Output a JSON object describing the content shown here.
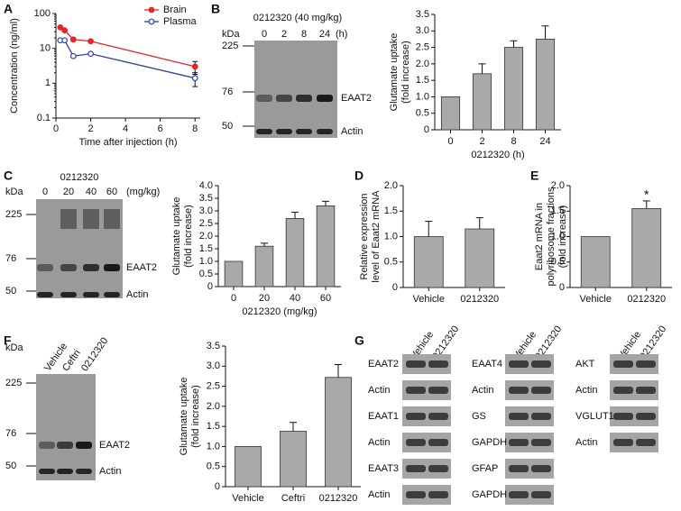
{
  "panel_labels": [
    "A",
    "B",
    "C",
    "D",
    "E",
    "F",
    "G"
  ],
  "chart_data": [
    {
      "type": "line",
      "xlabel": "Time after injection (h)",
      "ylabel": [
        "Concentration (ng/ml)"
      ],
      "xlim": [
        0,
        8.3
      ],
      "xticks": [
        0,
        2,
        4,
        6,
        8
      ],
      "ylim": [
        0.1,
        100
      ],
      "yticks": [
        0.1,
        1,
        10,
        100
      ],
      "log_y": true,
      "legend": "upper right",
      "series": [
        {
          "name": "Brain",
          "color": "#e3262b",
          "filled": true,
          "x": [
            0.25,
            0.5,
            1,
            2,
            8
          ],
          "values": [
            40,
            33,
            18,
            16,
            3
          ],
          "errors": [
            null,
            null,
            null,
            null,
            1.2
          ]
        },
        {
          "name": "Plasma",
          "color": "#2f42a6",
          "filled": false,
          "x": [
            0.25,
            0.5,
            1,
            2,
            8
          ],
          "values": [
            17,
            17,
            6,
            7,
            1.4
          ],
          "errors": [
            null,
            null,
            null,
            null,
            0.6
          ]
        }
      ]
    },
    {
      "type": "bar",
      "xlabel": "0212320 (h)",
      "ylabel": [
        "Glutamate uptake",
        "(fold increase)"
      ],
      "categories": [
        "0",
        "2",
        "8",
        "24"
      ],
      "values": [
        1,
        1.7,
        2.5,
        2.75
      ],
      "errors": [
        null,
        0.3,
        0.2,
        0.4
      ],
      "color": "#a9a9a9",
      "ylim": [
        0,
        3.5
      ],
      "yticks": [
        0,
        0.5,
        {
          "value": 1,
          "label": "1.0"
        },
        1.5,
        {
          "value": 2,
          "label": "2.0"
        },
        2.5,
        {
          "value": 3,
          "label": "3.0"
        },
        3.5
      ]
    },
    {
      "type": "bar",
      "xlabel": "0212320 (mg/kg)",
      "ylabel": [
        "Glutamate uptake",
        "(fold increase)"
      ],
      "categories": [
        "0",
        "20",
        "40",
        "60"
      ],
      "values": [
        1,
        1.6,
        2.7,
        3.2
      ],
      "errors": [
        null,
        0.12,
        0.25,
        0.18
      ],
      "color": "#a9a9a9",
      "ylim": [
        0,
        4
      ],
      "yticks": [
        0,
        0.5,
        {
          "value": 1,
          "label": "1.0"
        },
        1.5,
        {
          "value": 2,
          "label": "2.0"
        },
        2.5,
        {
          "value": 3,
          "label": "3.0"
        },
        3.5,
        {
          "value": 4,
          "label": "4.0"
        }
      ]
    },
    {
      "type": "bar",
      "ylabel": [
        "Relative expression",
        "level of Eaat2 mRNA"
      ],
      "categories": [
        "Vehicle",
        "0212320"
      ],
      "values": [
        1,
        1.15
      ],
      "errors": [
        0.3,
        0.22
      ],
      "color": "#a9a9a9",
      "ylim": [
        0,
        2
      ],
      "yticks": [
        0,
        0.5,
        {
          "value": 1,
          "label": "1.0"
        },
        1.5,
        {
          "value": 2,
          "label": "2.0"
        }
      ]
    },
    {
      "type": "bar",
      "ylabel": [
        "Eaat2 mRNA in",
        "polyribosome fractions",
        "(fold increase)"
      ],
      "categories": [
        "Vehicle",
        "0212320"
      ],
      "values": [
        1,
        1.55
      ],
      "errors": [
        null,
        0.15
      ],
      "significance": [
        null,
        "*"
      ],
      "color": "#a9a9a9",
      "ylim": [
        0,
        2
      ],
      "yticks": [
        0,
        0.5,
        {
          "value": 1,
          "label": "1.0"
        },
        1.5,
        {
          "value": 2,
          "label": "2.0"
        }
      ]
    },
    {
      "type": "bar",
      "ylabel": [
        "Glutamate uptake",
        "(fold increase)"
      ],
      "categories": [
        "Vehicle",
        "Ceftri",
        "0212320"
      ],
      "values": [
        1,
        1.38,
        2.72
      ],
      "errors": [
        null,
        0.22,
        0.32
      ],
      "color": "#a9a9a9",
      "ylim": [
        0,
        3.5
      ],
      "yticks": [
        0,
        0.5,
        {
          "value": 1,
          "label": "1.0"
        },
        1.5,
        {
          "value": 2,
          "label": "2.0"
        },
        2.5,
        {
          "value": 3,
          "label": "3.0"
        },
        3.5
      ]
    }
  ],
  "blots": {
    "B": {
      "title": "0212320 (40 mg/kg)",
      "unit": "kDa",
      "lanes": [
        "0",
        "2",
        "8",
        "24"
      ],
      "lane_unit": "(h)",
      "markers": [
        225,
        76,
        50
      ],
      "bands": [
        "EAAT2",
        "Actin"
      ]
    },
    "C": {
      "title": "0212320",
      "unit": "kDa",
      "lanes": [
        "0",
        "20",
        "40",
        "60"
      ],
      "lane_unit": "(mg/kg)",
      "markers": [
        225,
        76,
        50
      ],
      "bands": [
        "EAAT2",
        "Actin"
      ]
    },
    "F": {
      "unit": "kDa",
      "lanes": [
        "Vehicle",
        "Ceftri",
        "0212320"
      ],
      "markers": [
        225,
        76,
        50
      ],
      "bands": [
        "EAAT2",
        "Actin"
      ]
    },
    "G": {
      "columns": [
        {
          "lanes": [
            "Vehicle",
            "0212320"
          ],
          "bands": [
            "EAAT2",
            "Actin",
            "EAAT1",
            "Actin",
            "EAAT3",
            "Actin"
          ]
        },
        {
          "lanes": [
            "Vehicle",
            "0212320"
          ],
          "bands": [
            "EAAT4",
            "Actin",
            "GS",
            "GAPDH",
            "GFAP",
            "GAPDH"
          ]
        },
        {
          "lanes": [
            "Vehicle",
            "0212320"
          ],
          "bands": [
            "AKT",
            "Actin",
            "VGLUT1",
            "Actin"
          ]
        }
      ]
    }
  }
}
